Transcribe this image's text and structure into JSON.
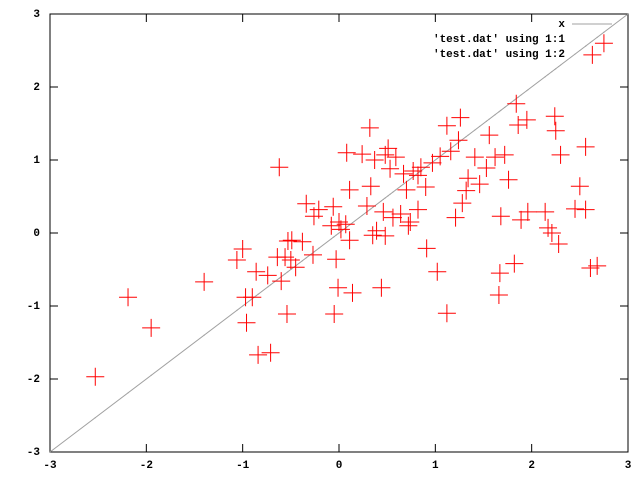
{
  "chart_data": {
    "type": "scatter",
    "xlim": [
      -3,
      3
    ],
    "ylim": [
      -3,
      3
    ],
    "xticks": [
      -3,
      -2,
      -1,
      0,
      1,
      2,
      3
    ],
    "yticks": [
      -3,
      -2,
      -1,
      0,
      1,
      2,
      3
    ],
    "legend": "top-right",
    "x": [
      -2.53,
      -2.19,
      -1.95,
      -1.4,
      -1.06,
      -1.0,
      -0.97,
      -0.96,
      -0.9,
      -0.86,
      -0.84,
      -0.71,
      -0.74,
      -0.64,
      -0.62,
      -0.6,
      -0.56,
      -0.54,
      -0.53,
      -0.5,
      -0.49,
      -0.45,
      -0.38,
      -0.34,
      -0.27,
      -0.26,
      -0.21,
      -0.08,
      -0.06,
      -0.05,
      -0.03,
      -0.01,
      0.0,
      0.02,
      0.07,
      0.08,
      0.11,
      0.14,
      0.11,
      0.24,
      0.29,
      0.32,
      0.33,
      0.35,
      0.39,
      0.37,
      0.44,
      0.46,
      0.48,
      0.48,
      0.51,
      0.53,
      0.56,
      0.59,
      0.64,
      0.67,
      0.7,
      0.72,
      0.74,
      0.77,
      0.82,
      0.82,
      0.85,
      0.9,
      0.91,
      0.97,
      1.02,
      1.05,
      1.12,
      1.12,
      1.16,
      1.21,
      1.24,
      1.26,
      1.28,
      1.32,
      1.34,
      1.41,
      1.46,
      1.53,
      1.56,
      1.62,
      1.66,
      1.67,
      1.68,
      1.72,
      1.76,
      1.82,
      1.84,
      1.86,
      1.89,
      1.95,
      1.96,
      2.14,
      2.17,
      2.21,
      2.24,
      2.25,
      2.28,
      2.3,
      2.45,
      2.5,
      2.56,
      2.56,
      2.61,
      2.63,
      2.68,
      2.75
    ],
    "series": [
      {
        "name": "x",
        "color": "#a0a0a0",
        "x": [
          -3,
          3
        ],
        "values": [
          -3,
          3
        ]
      },
      {
        "name": "'test.dat' using 1:1",
        "color": "#a0a0a0",
        "values": [
          -2.53,
          -2.19,
          -1.95,
          -1.4,
          -1.06,
          -1.0,
          -0.97,
          -0.96,
          -0.9,
          -0.86,
          -0.84,
          -0.71,
          -0.74,
          -0.64,
          -0.62,
          -0.6,
          -0.56,
          -0.54,
          -0.53,
          -0.5,
          -0.49,
          -0.45,
          -0.38,
          -0.34,
          -0.27,
          -0.26,
          -0.21,
          -0.08,
          -0.06,
          -0.05,
          -0.03,
          -0.01,
          0.0,
          0.02,
          0.07,
          0.08,
          0.11,
          0.14,
          0.11,
          0.24,
          0.29,
          0.32,
          0.33,
          0.35,
          0.39,
          0.37,
          0.44,
          0.46,
          0.48,
          0.48,
          0.51,
          0.53,
          0.56,
          0.59,
          0.64,
          0.67,
          0.7,
          0.72,
          0.74,
          0.77,
          0.82,
          0.82,
          0.85,
          0.9,
          0.91,
          0.97,
          1.02,
          1.05,
          1.12,
          1.12,
          1.16,
          1.21,
          1.24,
          1.26,
          1.28,
          1.32,
          1.34,
          1.41,
          1.46,
          1.53,
          1.56,
          1.62,
          1.66,
          1.67,
          1.68,
          1.72,
          1.76,
          1.82,
          1.84,
          1.86,
          1.89,
          1.95,
          1.96,
          2.14,
          2.17,
          2.21,
          2.24,
          2.25,
          2.28,
          2.3,
          2.45,
          2.5,
          2.56,
          2.56,
          2.61,
          2.63,
          2.68,
          2.75
        ]
      },
      {
        "name": "'test.dat' using 1:2",
        "color": "#ff0000",
        "values": [
          -1.97,
          -0.88,
          -1.3,
          -0.67,
          -0.37,
          -0.22,
          -0.88,
          -1.23,
          -0.88,
          -0.53,
          -1.67,
          -1.64,
          -0.58,
          -0.33,
          0.9,
          -0.66,
          -0.33,
          -1.11,
          -0.11,
          -0.37,
          -0.1,
          -0.47,
          -0.12,
          0.4,
          -0.3,
          0.23,
          0.32,
          0.1,
          0.36,
          -1.11,
          -0.36,
          -0.75,
          0.15,
          0.05,
          0.12,
          1.1,
          -0.1,
          -0.82,
          0.59,
          1.08,
          0.37,
          1.44,
          0.64,
          -0.03,
          0.03,
          1.0,
          -0.75,
          0.29,
          1.07,
          -0.04,
          1.16,
          0.88,
          0.21,
          1.04,
          0.26,
          0.81,
          0.59,
          0.1,
          0.15,
          0.85,
          0.79,
          0.32,
          0.9,
          0.63,
          -0.21,
          0.96,
          -0.53,
          1.05,
          1.47,
          -1.1,
          1.12,
          0.21,
          1.27,
          1.58,
          0.41,
          0.58,
          0.75,
          1.04,
          0.67,
          0.89,
          1.34,
          1.04,
          -0.85,
          -0.55,
          0.23,
          1.07,
          0.73,
          -0.42,
          1.77,
          1.48,
          0.18,
          1.55,
          0.29,
          0.29,
          0.07,
          0.0,
          1.6,
          1.4,
          -0.15,
          1.07,
          0.33,
          0.64,
          1.18,
          0.32,
          -0.48,
          2.44,
          -0.45,
          2.6
        ]
      }
    ]
  }
}
